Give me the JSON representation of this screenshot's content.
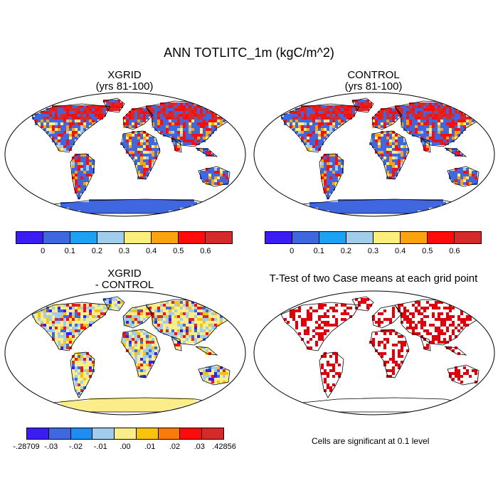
{
  "title": "ANN TOTLITC_1m (kgC/m^2)",
  "panels": {
    "top_left": {
      "title_line1": "XGRID",
      "title_line2": "(yrs 81-100)"
    },
    "top_right": {
      "title_line1": "CONTROL",
      "title_line2": "(yrs 81-100)"
    },
    "bottom_left": {
      "title_line1": "XGRID",
      "title_line2": "- CONTROL"
    },
    "bottom_right": {
      "title_line1": "T-Test of two Case means at each grid point"
    }
  },
  "colorbar_abs": {
    "colors": [
      "#3a1df2",
      "#3f67e0",
      "#1da1f2",
      "#a0cdeb",
      "#fbee7a",
      "#f9a30e",
      "#fe0c0c",
      "#d42a2a"
    ],
    "labels": [
      "0",
      "0.1",
      "0.2",
      "0.3",
      "0.4",
      "0.5",
      "0.6"
    ]
  },
  "colorbar_diff": {
    "colors": [
      "#3a1df2",
      "#3f67e0",
      "#1d8df2",
      "#a0cdeb",
      "#fbee8a",
      "#f9c20e",
      "#fb7a0c",
      "#fe0c0c",
      "#d42a2a"
    ],
    "labels": [
      "-.28709",
      "-.03",
      "-.02",
      "-.01",
      ".00",
      ".01",
      ".02",
      ".03",
      ".42856"
    ]
  },
  "significance_note": "Cells are significant at 0.1 level",
  "colors": {
    "low": "#3f67e0",
    "mid": "#fbee7a",
    "high": "#fe0c0c",
    "significant": "#e0000a"
  }
}
